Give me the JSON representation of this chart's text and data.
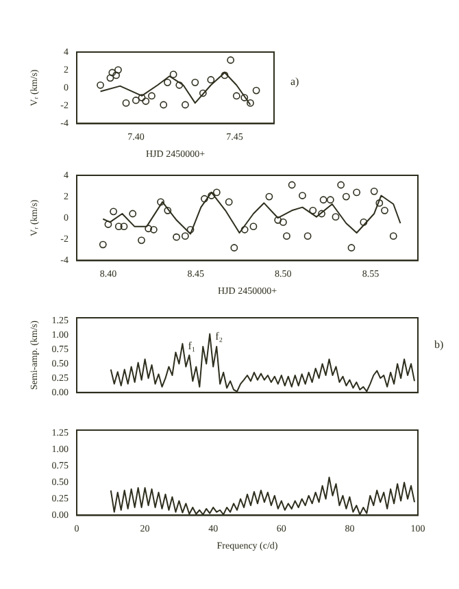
{
  "chart_data": [
    {
      "type": "scatter",
      "xlabel": "HJD 2450000+",
      "ylabel": "Vᵣ (km/s)",
      "annotations": [
        "a)"
      ],
      "marker": "circle",
      "grid": false,
      "legend": false,
      "xlim": [
        7.37,
        7.47
      ],
      "xticks": [
        {
          "value": 7.4,
          "label": "7.40"
        },
        {
          "value": 7.45,
          "label": "7.45"
        }
      ],
      "ylim": [
        -4,
        4
      ],
      "yticks": [
        -4,
        -2,
        0,
        2,
        4
      ],
      "series": [
        {
          "color": "#2e2e1e",
          "x": [
            7.382,
            7.387,
            7.388,
            7.391,
            7.39,
            7.395,
            7.4,
            7.403,
            7.405,
            7.408,
            7.414,
            7.416,
            7.419,
            7.422,
            7.425,
            7.43,
            7.434,
            7.438,
            7.445,
            7.448,
            7.451,
            7.455,
            7.458,
            7.461
          ],
          "values": [
            0.3,
            1.1,
            1.7,
            2.0,
            1.4,
            -1.7,
            -1.4,
            -1.1,
            -1.5,
            -0.9,
            -1.9,
            0.6,
            1.5,
            0.3,
            -1.9,
            0.6,
            -0.6,
            0.9,
            1.4,
            3.1,
            -0.9,
            -1.1,
            -1.7,
            -0.3
          ]
        },
        {
          "type": "line",
          "marker": "none",
          "color": "#2e2e1e",
          "x": [
            7.382,
            7.392,
            7.403,
            7.411,
            7.417,
            7.424,
            7.43,
            7.438,
            7.445,
            7.451,
            7.458
          ],
          "values": [
            -0.4,
            0.2,
            -0.9,
            0.3,
            1.3,
            0.3,
            -1.7,
            0.3,
            1.7,
            0.3,
            -1.9
          ]
        }
      ]
    },
    {
      "type": "scatter",
      "xlabel": "HJD 2450000+",
      "ylabel": "Vᵣ (km/s)",
      "marker": "circle",
      "grid": false,
      "legend": false,
      "xlim": [
        8.382,
        8.577
      ],
      "xticks": [
        {
          "value": 8.4,
          "label": "8.40"
        },
        {
          "value": 8.45,
          "label": "8.45"
        },
        {
          "value": 8.5,
          "label": "8.50"
        },
        {
          "value": 8.55,
          "label": "8.55"
        }
      ],
      "ylim": [
        -4,
        4
      ],
      "yticks": [
        -4,
        -2,
        0,
        2,
        4
      ],
      "series": [
        {
          "color": "#2e2e1e",
          "x": [
            8.397,
            8.4,
            8.403,
            8.406,
            8.409,
            8.414,
            8.419,
            8.423,
            8.426,
            8.43,
            8.434,
            8.439,
            8.444,
            8.447,
            8.455,
            8.459,
            8.462,
            8.469,
            8.472,
            8.478,
            8.483,
            8.492,
            8.497,
            8.5,
            8.502,
            8.505,
            8.511,
            8.514,
            8.517,
            8.522,
            8.523,
            8.527,
            8.53,
            8.533,
            8.536,
            8.539,
            8.542,
            8.546,
            8.552,
            8.555,
            8.558,
            8.563
          ],
          "values": [
            -2.5,
            -0.6,
            0.6,
            -0.8,
            -0.8,
            0.4,
            -2.1,
            -1.0,
            -1.1,
            1.5,
            0.7,
            -1.8,
            -1.7,
            -1.1,
            1.8,
            2.1,
            2.4,
            1.5,
            -2.8,
            -1.1,
            -0.8,
            2.0,
            -0.2,
            -0.4,
            -1.7,
            3.1,
            2.1,
            -1.7,
            0.7,
            0.4,
            1.7,
            1.7,
            0.1,
            3.1,
            2.0,
            -2.8,
            2.4,
            -0.4,
            2.5,
            1.4,
            0.7,
            -1.7
          ]
        },
        {
          "type": "line",
          "marker": "none",
          "color": "#2e2e1e",
          "x": [
            8.397,
            8.401,
            8.408,
            8.415,
            8.422,
            8.431,
            8.439,
            8.447,
            8.453,
            8.459,
            8.467,
            8.475,
            8.483,
            8.489,
            8.497,
            8.505,
            8.511,
            8.519,
            8.528,
            8.536,
            8.542,
            8.552,
            8.556,
            8.563,
            8.567
          ],
          "values": [
            -0.1,
            -0.4,
            0.4,
            -0.8,
            -0.8,
            1.5,
            -0.2,
            -1.5,
            1.0,
            2.4,
            0.7,
            -1.4,
            0.4,
            1.4,
            0.0,
            0.7,
            1.0,
            0.1,
            1.3,
            -0.5,
            -1.4,
            0.4,
            2.1,
            1.3,
            -0.5
          ]
        }
      ]
    },
    {
      "type": "line",
      "ylabel": "Semi-amp. (km/s)",
      "annotations": [
        "b)",
        {
          "text": "f₁",
          "x": 31,
          "y": 0.85
        },
        {
          "text": "f₂",
          "x": 39,
          "y": 1.02
        }
      ],
      "grid": false,
      "legend": false,
      "tick_labels": "y",
      "xlim": [
        0,
        100
      ],
      "xticks": [
        0,
        20,
        40,
        60,
        80,
        100
      ],
      "ylim": [
        0,
        1.3
      ],
      "yticks": [
        {
          "value": 0,
          "label": "0.00"
        },
        0.25,
        {
          "value": 0.5,
          "label": "0.50"
        },
        0.75,
        {
          "value": 1,
          "label": "1.00"
        },
        1.25
      ],
      "series": [
        {
          "color": "#2e2e1e",
          "x": [
            10,
            11,
            12,
            13,
            14,
            15,
            16,
            17,
            18,
            19,
            20,
            21,
            22,
            23,
            24,
            25,
            26,
            27,
            28,
            29,
            30,
            31,
            32,
            33,
            34,
            35,
            36,
            37,
            38,
            39,
            40,
            41,
            42,
            43,
            44,
            45,
            46,
            47,
            48,
            49,
            50,
            51,
            52,
            53,
            54,
            55,
            56,
            57,
            58,
            59,
            60,
            61,
            62,
            63,
            64,
            65,
            66,
            67,
            68,
            69,
            70,
            71,
            72,
            73,
            74,
            75,
            76,
            77,
            78,
            79,
            80,
            81,
            82,
            83,
            84,
            85,
            86,
            87,
            88,
            89,
            90,
            91,
            92,
            93,
            94,
            95,
            96,
            97,
            98,
            99
          ],
          "values": [
            0.4,
            0.15,
            0.36,
            0.12,
            0.4,
            0.15,
            0.45,
            0.18,
            0.52,
            0.22,
            0.58,
            0.25,
            0.48,
            0.15,
            0.32,
            0.1,
            0.25,
            0.45,
            0.3,
            0.7,
            0.5,
            0.85,
            0.45,
            0.65,
            0.2,
            0.45,
            0.1,
            0.8,
            0.5,
            1.02,
            0.45,
            0.8,
            0.15,
            0.35,
            0.08,
            0.2,
            0.05,
            0.02,
            0.15,
            0.22,
            0.3,
            0.2,
            0.35,
            0.22,
            0.33,
            0.22,
            0.3,
            0.18,
            0.28,
            0.15,
            0.3,
            0.12,
            0.28,
            0.1,
            0.3,
            0.12,
            0.32,
            0.15,
            0.35,
            0.18,
            0.42,
            0.25,
            0.5,
            0.3,
            0.58,
            0.3,
            0.45,
            0.18,
            0.28,
            0.12,
            0.22,
            0.08,
            0.18,
            0.05,
            0.1,
            0.02,
            0.15,
            0.3,
            0.38,
            0.25,
            0.3,
            0.1,
            0.35,
            0.15,
            0.5,
            0.25,
            0.58,
            0.3,
            0.5,
            0.2
          ]
        }
      ]
    },
    {
      "type": "line",
      "xlabel": "Frequency (c/d)",
      "grid": false,
      "legend": false,
      "xlim": [
        0,
        100
      ],
      "xticks": [
        0,
        20,
        40,
        60,
        80,
        100
      ],
      "ylim": [
        0,
        1.3
      ],
      "yticks": [
        {
          "value": 0,
          "label": "0.00"
        },
        0.25,
        {
          "value": 0.5,
          "label": "0.50"
        },
        0.75,
        {
          "value": 1,
          "label": "1.00"
        },
        1.25
      ],
      "series": [
        {
          "color": "#2e2e1e",
          "x": [
            10,
            11,
            12,
            13,
            14,
            15,
            16,
            17,
            18,
            19,
            20,
            21,
            22,
            23,
            24,
            25,
            26,
            27,
            28,
            29,
            30,
            31,
            32,
            33,
            34,
            35,
            36,
            37,
            38,
            39,
            40,
            41,
            42,
            43,
            44,
            45,
            46,
            47,
            48,
            49,
            50,
            51,
            52,
            53,
            54,
            55,
            56,
            57,
            58,
            59,
            60,
            61,
            62,
            63,
            64,
            65,
            66,
            67,
            68,
            69,
            70,
            71,
            72,
            73,
            74,
            75,
            76,
            77,
            78,
            79,
            80,
            81,
            82,
            83,
            84,
            85,
            86,
            87,
            88,
            89,
            90,
            91,
            92,
            93,
            94,
            95,
            96,
            97,
            98,
            99
          ],
          "values": [
            0.38,
            0.05,
            0.35,
            0.08,
            0.38,
            0.1,
            0.4,
            0.12,
            0.42,
            0.12,
            0.42,
            0.15,
            0.4,
            0.12,
            0.35,
            0.1,
            0.32,
            0.08,
            0.28,
            0.05,
            0.22,
            0.04,
            0.18,
            0.02,
            0.12,
            0.02,
            0.08,
            0.01,
            0.1,
            0.03,
            0.12,
            0.05,
            0.08,
            0.01,
            0.12,
            0.05,
            0.18,
            0.08,
            0.25,
            0.12,
            0.32,
            0.15,
            0.36,
            0.18,
            0.38,
            0.2,
            0.35,
            0.15,
            0.3,
            0.1,
            0.22,
            0.08,
            0.18,
            0.1,
            0.22,
            0.12,
            0.25,
            0.15,
            0.3,
            0.18,
            0.35,
            0.2,
            0.45,
            0.25,
            0.58,
            0.3,
            0.48,
            0.15,
            0.3,
            0.1,
            0.28,
            0.05,
            0.15,
            0.01,
            0.12,
            0.03,
            0.3,
            0.15,
            0.38,
            0.2,
            0.35,
            0.1,
            0.4,
            0.18,
            0.48,
            0.22,
            0.5,
            0.25,
            0.45,
            0.2
          ]
        }
      ]
    }
  ]
}
